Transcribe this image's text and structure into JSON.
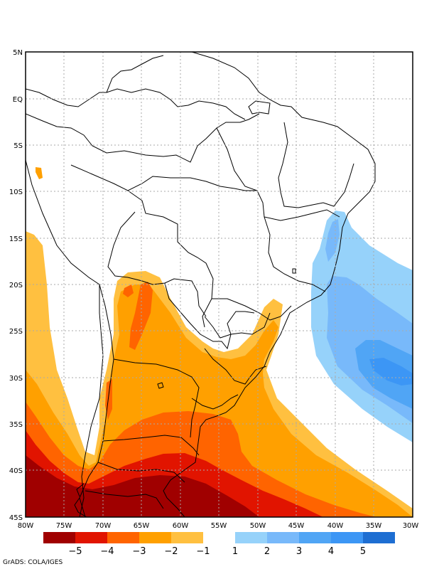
{
  "map": {
    "lat_labels": [
      "5N",
      "EQ",
      "5S",
      "10S",
      "15S",
      "20S",
      "25S",
      "30S",
      "35S",
      "40S",
      "45S"
    ],
    "lon_labels": [
      "80W",
      "75W",
      "70W",
      "65W",
      "60W",
      "55W",
      "50W",
      "45W",
      "40W",
      "35W",
      "30W"
    ],
    "extent": {
      "lon": [
        -80,
        -30
      ],
      "lat": [
        -45,
        5
      ]
    },
    "grid": "dotted"
  },
  "colorbar": {
    "negative_colors": [
      "#a00000",
      "#e11400",
      "#ff6400",
      "#ffa000",
      "#ffc040"
    ],
    "positive_colors": [
      "#96d2fa",
      "#78b9fa",
      "#50a5f5",
      "#3c96f5",
      "#1e6ed2"
    ],
    "negative_labels": [
      "−5",
      "−4",
      "−3",
      "−2",
      "−1"
    ],
    "positive_labels": [
      "1",
      "2",
      "3",
      "4",
      "5"
    ]
  },
  "credit": "GrADS: COLA/IGES"
}
